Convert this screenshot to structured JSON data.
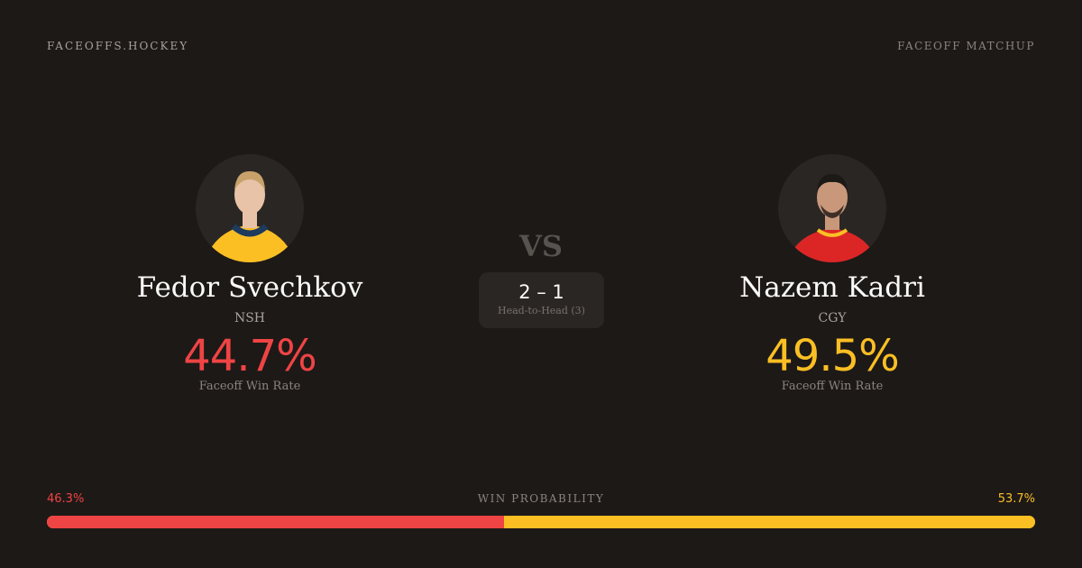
{
  "brand": "FACEOFFS.HOCKEY",
  "page_label": "FACEOFF MATCHUP",
  "vs": "VS",
  "head_to_head": {
    "score": "2 – 1",
    "caption": "Head-to-Head (3)"
  },
  "players": [
    {
      "name": "Fedor Svechkov",
      "team": "NSH",
      "win_rate": "44.7%",
      "win_rate_label": "Faceoff Win Rate",
      "color": "#ef4444",
      "jersey": "#fbbf24"
    },
    {
      "name": "Nazem Kadri",
      "team": "CGY",
      "win_rate": "49.5%",
      "win_rate_label": "Faceoff Win Rate",
      "color": "#fbbf24",
      "jersey": "#dc2626"
    }
  ],
  "win_probability": {
    "title": "WIN PROBABILITY",
    "left": "46.3%",
    "right": "53.7%",
    "left_value": 46.3,
    "right_value": 53.7,
    "left_color": "#ef4444",
    "right_color": "#fbbf24"
  }
}
